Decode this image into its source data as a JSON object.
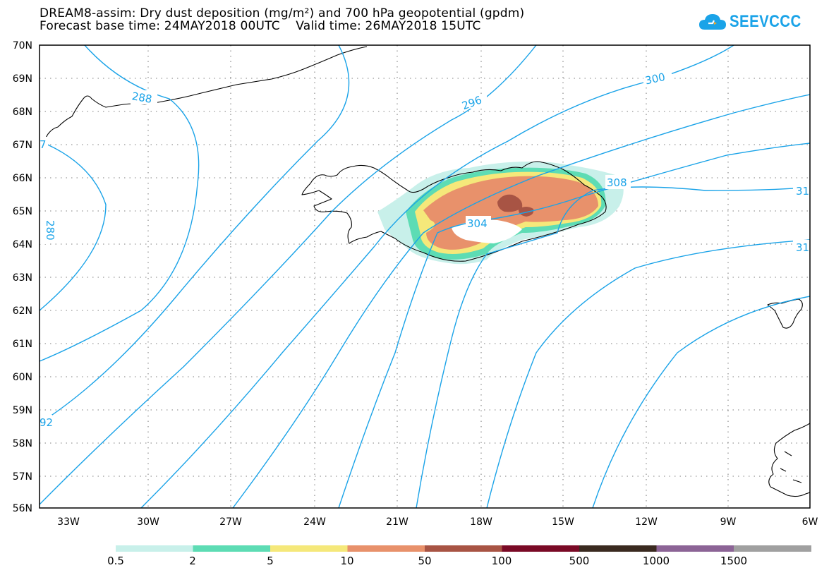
{
  "header": {
    "title_line1": "DREAM8-assim: Dry dust deposition (mg/m²) and 700 hPa geopotential (gpdm)",
    "title_line2": "Forecast base time: 24MAY2018 00UTC    Valid time: 26MAY2018 15UTC"
  },
  "logo": {
    "text": "SEEVCCC",
    "icon": "cloud-icon"
  },
  "map": {
    "lat_labels": [
      "70N",
      "69N",
      "68N",
      "67N",
      "66N",
      "65N",
      "64N",
      "63N",
      "62N",
      "61N",
      "60N",
      "59N",
      "58N",
      "57N",
      "56N"
    ],
    "lon_labels": [
      "33W",
      "30W",
      "27W",
      "24W",
      "21W",
      "18W",
      "15W",
      "12W",
      "9W",
      "6W"
    ],
    "contour_labels": [
      "288",
      "296",
      "300",
      "308",
      "304",
      "31",
      "31",
      "280",
      "92",
      "7"
    ],
    "contour_color": "#1aa3e8"
  },
  "legend": {
    "colors": [
      "#c8f0ea",
      "#5ddcb4",
      "#f5e87a",
      "#e8916b",
      "#a85444",
      "#7a0a26",
      "#3a2a20",
      "#8c6496",
      "#a0a0a0"
    ],
    "labels": [
      "0.5",
      "2",
      "5",
      "10",
      "50",
      "100",
      "500",
      "1000",
      "1500"
    ]
  }
}
